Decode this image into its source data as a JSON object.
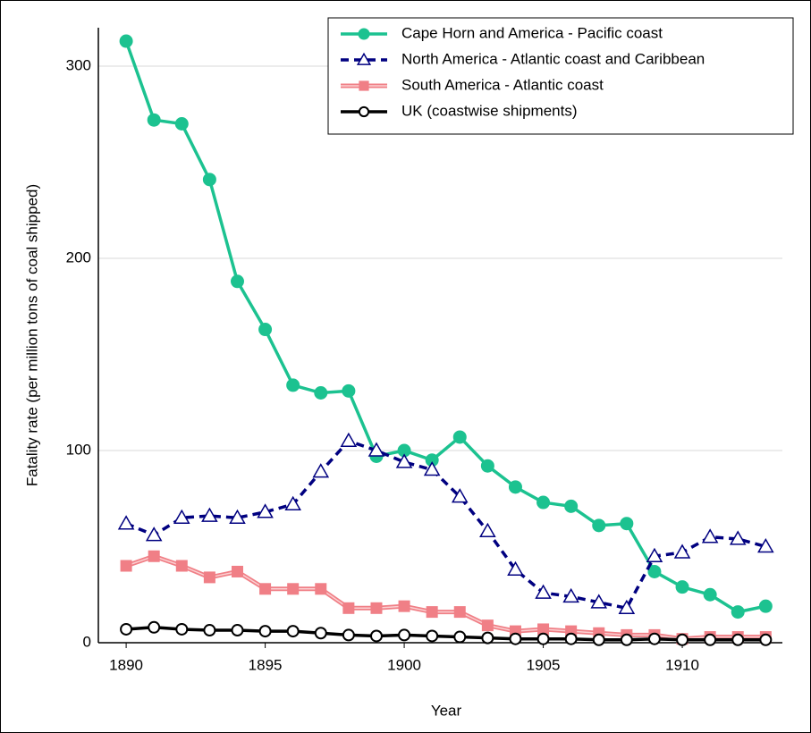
{
  "chart_data": {
    "type": "line",
    "x_label": "Year",
    "y_label": "Fatality rate (per million tons of coal shipped)",
    "x": [
      1890,
      1891,
      1892,
      1893,
      1894,
      1895,
      1896,
      1897,
      1898,
      1899,
      1900,
      1901,
      1902,
      1903,
      1904,
      1905,
      1906,
      1907,
      1908,
      1909,
      1910,
      1911,
      1912,
      1913
    ],
    "xlim": [
      1889,
      1913.6
    ],
    "xticks": [
      1890,
      1895,
      1900,
      1905,
      1910
    ],
    "ylim": [
      0,
      320
    ],
    "yticks": [
      0,
      100,
      200,
      300
    ],
    "grid": true,
    "legend": "top-right",
    "series": [
      {
        "name": "Cape Horn and America - Pacific coast",
        "color": "#1cc290",
        "values": [
          313,
          272,
          270,
          241,
          188,
          163,
          134,
          130,
          131,
          97,
          100,
          95,
          107,
          92,
          81,
          73,
          71,
          61,
          62,
          37,
          29,
          25,
          16,
          19
        ]
      },
      {
        "name": "North America - Atlantic coast and Caribbean",
        "color": "#000080",
        "values": [
          62,
          56,
          65,
          66,
          65,
          68,
          72,
          89,
          105,
          100,
          94,
          90,
          76,
          58,
          38,
          26,
          24,
          21,
          18,
          45,
          47,
          55,
          54,
          50
        ]
      },
      {
        "name": "South America - Atlantic coast",
        "color": "#f07f86",
        "values": [
          40,
          45,
          40,
          34,
          37,
          28,
          28,
          28,
          18,
          18,
          19,
          16,
          16,
          9,
          6,
          7,
          6,
          5,
          4,
          4,
          2,
          3,
          3,
          3
        ]
      },
      {
        "name": "UK  (coastwise shipments)",
        "color": "#000000",
        "values": [
          7,
          8,
          7,
          6.5,
          6.5,
          6,
          6,
          5,
          4,
          3.5,
          4,
          3.5,
          3,
          2.5,
          2,
          2,
          2,
          1.5,
          1.5,
          2,
          1.5,
          1.5,
          1.5,
          1.5
        ]
      }
    ]
  }
}
